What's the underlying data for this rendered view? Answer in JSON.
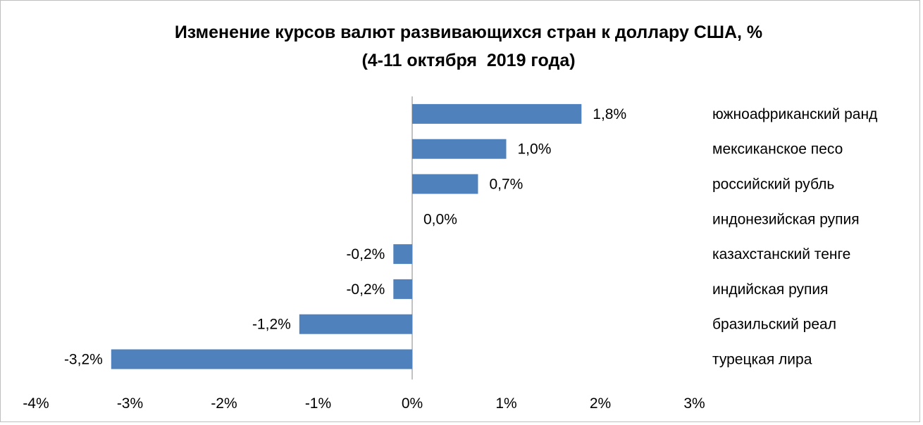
{
  "chart_data": {
    "type": "bar",
    "orientation": "horizontal",
    "title": "Изменение курсов валют развивающихся стран к доллару США, %",
    "subtitle": "(4-11 октября  2019 года)",
    "xlabel": "",
    "ylabel": "",
    "categories": [
      "южноафриканский ранд",
      "мексиканское песо",
      "российский рубль",
      "индонезийская рупия",
      "казахстанский тенге",
      "индийская рупия",
      "бразильский реал",
      "турецкая лира"
    ],
    "values": [
      1.8,
      1.0,
      0.7,
      0.0,
      -0.2,
      -0.2,
      -1.2,
      -3.2
    ],
    "data_labels": [
      "1,8%",
      "1,0%",
      "0,7%",
      "0,0%",
      "-0,2%",
      "-0,2%",
      "-1,2%",
      "-3,2%"
    ],
    "xlim": [
      -4,
      3
    ],
    "x_ticks": [
      -4,
      -3,
      -2,
      -1,
      0,
      1,
      2,
      3
    ],
    "x_tick_labels": [
      "-4%",
      "-3%",
      "-2%",
      "-1%",
      "0%",
      "1%",
      "2%",
      "3%"
    ],
    "grid": false,
    "legend": "none",
    "bar_color": "#4f81bd",
    "category_labels_position": "right"
  }
}
